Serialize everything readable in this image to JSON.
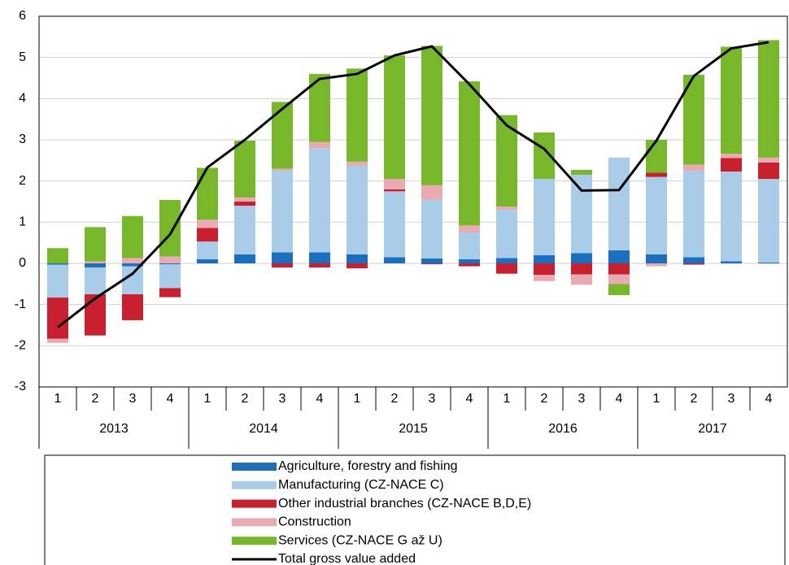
{
  "chart_data": {
    "type": "bar",
    "stacked": true,
    "categories": [
      "1",
      "2",
      "3",
      "4",
      "1",
      "2",
      "3",
      "4",
      "1",
      "2",
      "3",
      "4",
      "1",
      "2",
      "3",
      "4",
      "1",
      "2",
      "3",
      "4"
    ],
    "groups": [
      "2013",
      "2014",
      "2015",
      "2016",
      "2017"
    ],
    "ylim": [
      -3,
      6
    ],
    "yticks": [
      -3,
      -2,
      -1,
      0,
      1,
      2,
      3,
      4,
      5,
      6
    ],
    "grid": true,
    "legend": "bottom",
    "series": [
      {
        "name": "Agriculture, forestry and fishing",
        "color": "#1a6fbf",
        "values": [
          -0.03,
          -0.1,
          -0.07,
          -0.02,
          0.1,
          0.22,
          0.27,
          0.27,
          0.22,
          0.15,
          0.12,
          0.1,
          0.13,
          0.2,
          0.25,
          0.32,
          0.22,
          0.15,
          0.05,
          0.02
        ]
      },
      {
        "name": "Manufacturing (CZ-NACE C)",
        "color": "#a9cde9",
        "values": [
          -0.8,
          -0.65,
          -0.68,
          -0.58,
          0.43,
          1.18,
          1.98,
          2.53,
          2.15,
          1.6,
          1.43,
          0.65,
          1.17,
          1.85,
          1.9,
          2.25,
          1.88,
          2.1,
          2.18,
          2.03
        ]
      },
      {
        "name": "Other industrial branches (CZ-NACE B,D,E)",
        "color": "#c8202f",
        "values": [
          -1.0,
          -1.0,
          -0.63,
          -0.22,
          0.33,
          0.1,
          -0.1,
          -0.1,
          -0.12,
          0.05,
          -0.02,
          -0.07,
          -0.25,
          -0.28,
          -0.27,
          -0.27,
          0.1,
          -0.03,
          0.33,
          0.4
        ]
      },
      {
        "name": "Construction",
        "color": "#e9aab1",
        "values": [
          -0.1,
          0.05,
          0.13,
          0.17,
          0.2,
          0.1,
          0.05,
          0.15,
          0.1,
          0.25,
          0.35,
          0.17,
          0.08,
          -0.15,
          -0.25,
          -0.23,
          -0.07,
          0.15,
          0.1,
          0.12
        ]
      },
      {
        "name": "Services (CZ-NACE G až U)",
        "color": "#77b82a",
        "values": [
          0.37,
          0.83,
          1.02,
          1.37,
          1.26,
          1.38,
          1.62,
          1.65,
          2.26,
          3.0,
          3.38,
          3.5,
          2.22,
          1.13,
          0.12,
          -0.27,
          0.8,
          2.18,
          2.6,
          2.85
        ]
      },
      {
        "name": "Total gross value added",
        "color": "#000000",
        "type": "line",
        "values": [
          -1.55,
          -0.85,
          -0.25,
          0.7,
          2.33,
          3.0,
          3.75,
          4.48,
          4.6,
          5.05,
          5.27,
          4.35,
          3.35,
          2.78,
          1.77,
          1.78,
          2.98,
          4.55,
          5.22,
          5.37
        ]
      }
    ]
  }
}
